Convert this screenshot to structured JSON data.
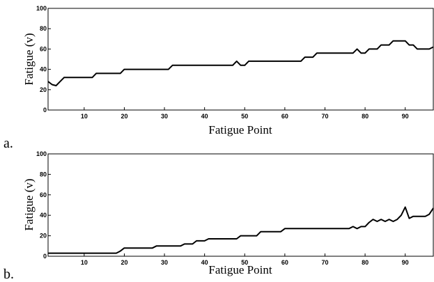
{
  "chart_data": [
    {
      "type": "line",
      "panel_label": "a.",
      "xlabel": "Fatigue Point",
      "ylabel": "Fatigue (v)",
      "xlim": [
        1,
        97
      ],
      "ylim": [
        0,
        100
      ],
      "xticks": [
        10,
        20,
        30,
        40,
        50,
        60,
        70,
        80,
        90
      ],
      "yticks": [
        0,
        20,
        40,
        60,
        80,
        100
      ],
      "series": [
        {
          "x": [
            1,
            2,
            3,
            4,
            5,
            6,
            12,
            13,
            19,
            20,
            31,
            32,
            47,
            48,
            49,
            50,
            51,
            52,
            64,
            65,
            67,
            68,
            77,
            78,
            79,
            80,
            81,
            82,
            83,
            84,
            85,
            86,
            87,
            88,
            90,
            91,
            92,
            93,
            94,
            96,
            97
          ],
          "y": [
            28,
            25,
            24,
            28,
            32,
            32,
            32,
            36,
            36,
            40,
            40,
            44,
            44,
            48,
            44,
            44,
            48,
            48,
            48,
            52,
            52,
            56,
            56,
            60,
            56,
            56,
            60,
            60,
            60,
            64,
            64,
            64,
            68,
            68,
            68,
            64,
            64,
            60,
            60,
            60,
            62
          ]
        }
      ]
    },
    {
      "type": "line",
      "panel_label": "b.",
      "xlabel": "Fatigue Point",
      "ylabel": "Fatigue (v)",
      "xlim": [
        1,
        97
      ],
      "ylim": [
        0,
        100
      ],
      "xticks": [
        10,
        20,
        30,
        40,
        50,
        60,
        70,
        80,
        90
      ],
      "yticks": [
        0,
        20,
        40,
        60,
        80,
        100
      ],
      "series": [
        {
          "x": [
            1,
            18,
            19,
            20,
            27,
            28,
            34,
            35,
            37,
            38,
            40,
            41,
            48,
            49,
            53,
            54,
            59,
            60,
            76,
            77,
            78,
            79,
            80,
            81,
            82,
            83,
            84,
            85,
            86,
            87,
            88,
            89,
            90,
            91,
            92,
            93,
            95,
            96,
            97
          ],
          "y": [
            3,
            3,
            5,
            8,
            8,
            10,
            10,
            12,
            12,
            15,
            15,
            17,
            17,
            20,
            20,
            24,
            24,
            27,
            27,
            29,
            27,
            29,
            29,
            33,
            36,
            34,
            36,
            34,
            36,
            34,
            36,
            40,
            48,
            37,
            39,
            39,
            39,
            41,
            47
          ]
        }
      ]
    }
  ]
}
